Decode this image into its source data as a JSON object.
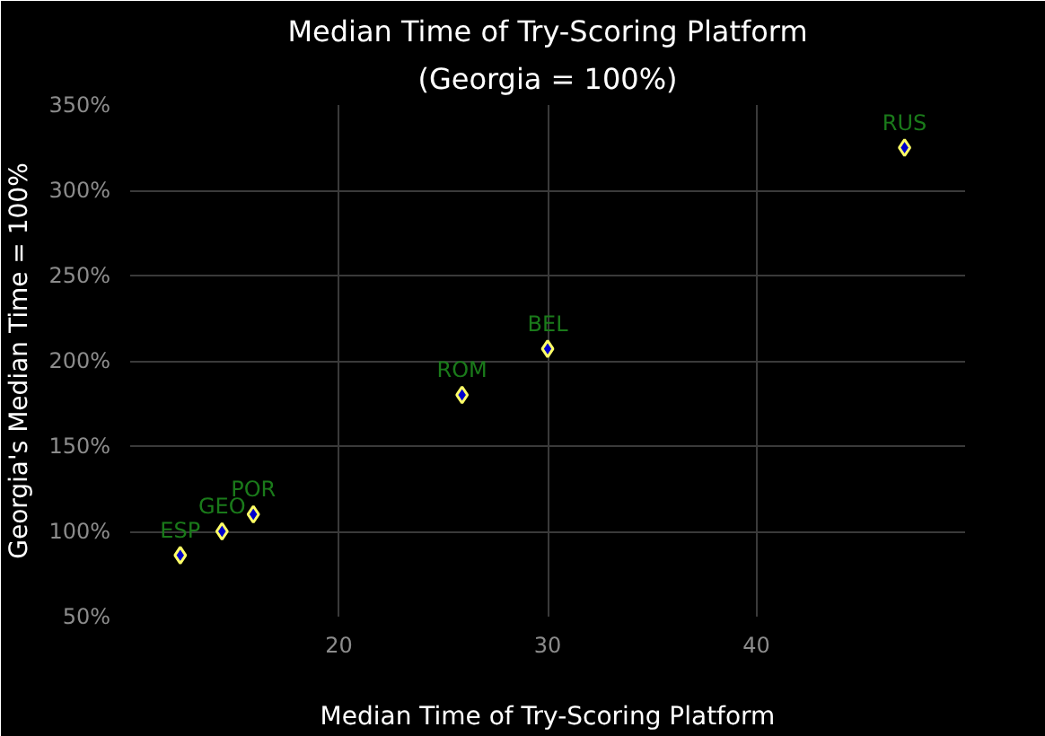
{
  "chart_data": {
    "type": "scatter",
    "title": "Median Time of Try-Scoring Platform\n(Georgia = 100%)",
    "xlabel": "Median Time of Try-Scoring Platform",
    "ylabel": "Georgia's Median Time = 100%",
    "x": [
      12.4,
      14.4,
      15.9,
      25.9,
      30.0,
      47.1
    ],
    "series": [
      {
        "color": "#0000cc",
        "values": [
          86,
          100,
          110,
          180,
          207,
          325
        ]
      }
    ],
    "annotations": [
      {
        "text": "ESP",
        "x": 12.4,
        "y": 86
      },
      {
        "text": "GEO",
        "x": 14.4,
        "y": 100
      },
      {
        "text": "POR",
        "x": 15.9,
        "y": 110
      },
      {
        "text": "ROM",
        "x": 25.9,
        "y": 180
      },
      {
        "text": "BEL",
        "x": 30.0,
        "y": 207
      },
      {
        "text": "RUS",
        "x": 47.1,
        "y": 325
      }
    ],
    "xlim": [
      10,
      50
    ],
    "ylim": [
      50,
      350
    ],
    "xticks": [
      20,
      30,
      40
    ],
    "yticks": [
      {
        "value": 50,
        "label": "50%"
      },
      {
        "value": 100,
        "label": "100%"
      },
      {
        "value": 150,
        "label": "150%"
      },
      {
        "value": 200,
        "label": "200%"
      },
      {
        "value": 250,
        "label": "250%"
      },
      {
        "value": 300,
        "label": "300%"
      },
      {
        "value": 350,
        "label": "350%"
      }
    ],
    "grid": true,
    "marker": "diamond"
  }
}
